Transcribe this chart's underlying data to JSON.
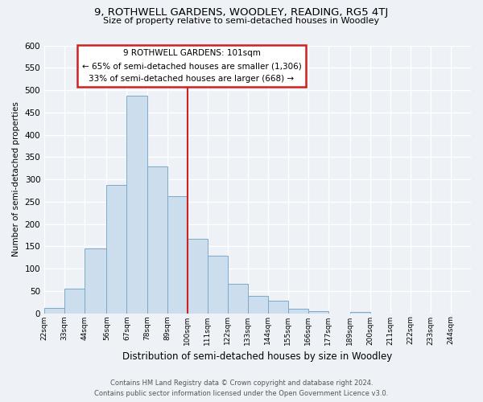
{
  "title": "9, ROTHWELL GARDENS, WOODLEY, READING, RG5 4TJ",
  "subtitle": "Size of property relative to semi-detached houses in Woodley",
  "xlabel": "Distribution of semi-detached houses by size in Woodley",
  "ylabel": "Number of semi-detached properties",
  "bin_labels": [
    "22sqm",
    "33sqm",
    "44sqm",
    "56sqm",
    "67sqm",
    "78sqm",
    "89sqm",
    "100sqm",
    "111sqm",
    "122sqm",
    "133sqm",
    "144sqm",
    "155sqm",
    "166sqm",
    "177sqm",
    "189sqm",
    "200sqm",
    "211sqm",
    "222sqm",
    "233sqm",
    "244sqm"
  ],
  "bin_edges": [
    22,
    33,
    44,
    56,
    67,
    78,
    89,
    100,
    111,
    122,
    133,
    144,
    155,
    166,
    177,
    189,
    200,
    211,
    222,
    233,
    244
  ],
  "bar_heights": [
    12,
    55,
    145,
    287,
    487,
    328,
    263,
    167,
    128,
    65,
    38,
    28,
    10,
    5,
    0,
    2,
    0,
    0,
    0,
    0
  ],
  "bar_color": "#ccdded",
  "bar_edge_color": "#7aaac8",
  "property_line_x": 100,
  "property_line_color": "#cc2222",
  "annotation_title": "9 ROTHWELL GARDENS: 101sqm",
  "annotation_line1": "← 65% of semi-detached houses are smaller (1,306)",
  "annotation_line2": "33% of semi-detached houses are larger (668) →",
  "annotation_box_color": "white",
  "annotation_box_edge": "#cc2222",
  "ylim": [
    0,
    600
  ],
  "yticks": [
    0,
    50,
    100,
    150,
    200,
    250,
    300,
    350,
    400,
    450,
    500,
    550,
    600
  ],
  "footer_line1": "Contains HM Land Registry data © Crown copyright and database right 2024.",
  "footer_line2": "Contains public sector information licensed under the Open Government Licence v3.0.",
  "bg_color": "#eef2f7"
}
